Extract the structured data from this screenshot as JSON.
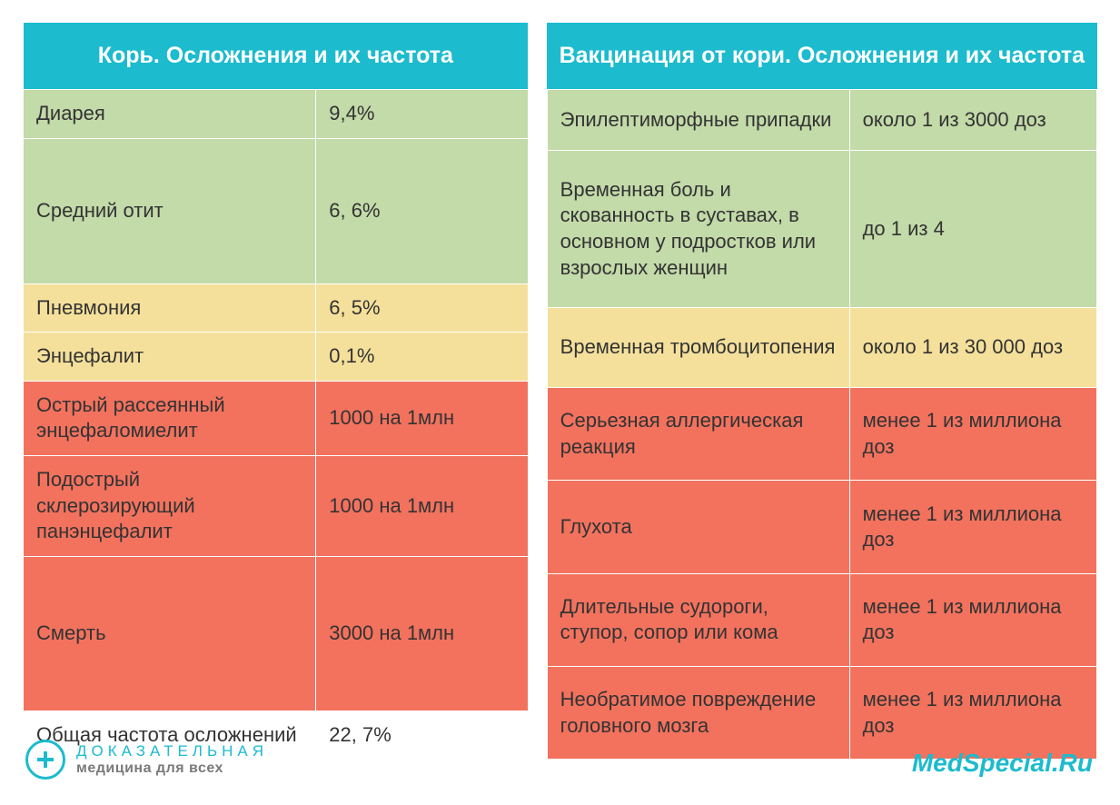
{
  "colors": {
    "header_bg": "#1cbbce",
    "header_text": "#ffffff",
    "green_bg": "#c3daa9",
    "yellow_bg": "#f4e09b",
    "red_bg": "#f2725e",
    "text": "#333333",
    "logo_color": "#1cbbce",
    "logo_sub": "#7a7a7a",
    "watermark": "#1cbbce",
    "white": "#ffffff"
  },
  "left": {
    "title": "Корь. Осложнения и их частота",
    "rows": [
      {
        "name": "Диарея",
        "freq": "9,4%",
        "color": "green"
      },
      {
        "name": "Средний отит",
        "freq": "6, 6%",
        "color": "green"
      },
      {
        "name": "Пневмония",
        "freq": "6, 5%",
        "color": "yellow"
      },
      {
        "name": "Энцефалит",
        "freq": "0,1%",
        "color": "yellow"
      },
      {
        "name": "Острый рассеянный энцефаломиелит",
        "freq": "1000 на 1млн",
        "color": "red"
      },
      {
        "name": "Подострый склерозирующий панэнцефалит",
        "freq": "1000 на 1млн",
        "color": "red"
      },
      {
        "name": "Смерть",
        "freq": "3000 на 1млн",
        "color": "red"
      }
    ],
    "footer_label": "Общая частота осложнений",
    "footer_value": "22, 7%"
  },
  "right": {
    "title": "Вакцинация от кори. Осложнения и их частота",
    "rows": [
      {
        "name": "Эпилептиморфные припадки",
        "freq": "около 1 из 3000 доз",
        "color": "green"
      },
      {
        "name": "Временная боль и скованность в суставах, в основном у подростков или взрослых женщин",
        "freq": "до 1 из 4",
        "color": "green"
      },
      {
        "name": "Временная тромбоцитопения",
        "freq": "около 1 из 30 000 доз",
        "color": "yellow"
      },
      {
        "name": "Серьезная аллергическая реакция",
        "freq": "менее 1 из миллиона доз",
        "color": "red"
      },
      {
        "name": "Глухота",
        "freq": "менее 1 из миллиона доз",
        "color": "red"
      },
      {
        "name": "Длительные судороги, ступор, сопор или кома",
        "freq": "менее 1 из миллиона доз",
        "color": "red"
      },
      {
        "name": "Необратимое повреждение головного мозга",
        "freq": "менее 1 из миллиона доз",
        "color": "red"
      }
    ]
  },
  "logo": {
    "line1": "ДОКАЗАТЕЛЬНАЯ",
    "line2": "медицина для всех"
  },
  "watermark": "MedSpecial.Ru"
}
